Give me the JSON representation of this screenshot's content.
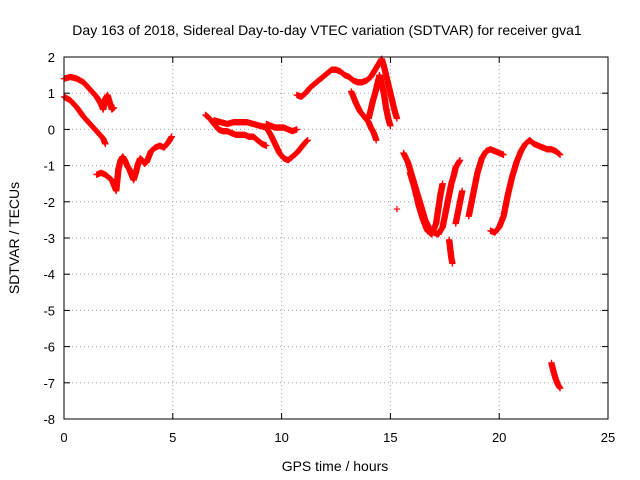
{
  "chart_data": {
    "type": "scatter",
    "title": "Day 163 of 2018, Sidereal Day-to-day VTEC variation (SDTVAR) for receiver gva1",
    "xlabel": "GPS time / hours",
    "ylabel": "SDTVAR / TECUs",
    "xlim": [
      0,
      25
    ],
    "ylim": [
      -8,
      2
    ],
    "xticks": [
      0,
      5,
      10,
      15,
      20,
      25
    ],
    "yticks": [
      -8,
      -7,
      -6,
      -5,
      -4,
      -3,
      -2,
      -1,
      0,
      1,
      2
    ],
    "grid": true,
    "legend": "none",
    "marker": "+",
    "color": "#ff0000",
    "segments": [
      [
        [
          0.0,
          1.4
        ],
        [
          0.3,
          1.45
        ],
        [
          0.6,
          1.4
        ],
        [
          0.9,
          1.3
        ],
        [
          1.2,
          1.1
        ],
        [
          1.5,
          0.9
        ],
        [
          1.7,
          0.7
        ],
        [
          1.8,
          0.55
        ],
        [
          1.9,
          0.85
        ],
        [
          2.0,
          0.95
        ],
        [
          2.1,
          0.75
        ],
        [
          2.2,
          0.55
        ],
        [
          2.3,
          0.6
        ]
      ],
      [
        [
          0.0,
          0.9
        ],
        [
          0.3,
          0.8
        ],
        [
          0.6,
          0.6
        ],
        [
          0.9,
          0.35
        ],
        [
          1.2,
          0.15
        ],
        [
          1.5,
          -0.05
        ],
        [
          1.8,
          -0.25
        ],
        [
          1.9,
          -0.4
        ]
      ],
      [
        [
          1.5,
          -1.25
        ],
        [
          1.7,
          -1.2
        ],
        [
          1.9,
          -1.25
        ],
        [
          2.1,
          -1.35
        ],
        [
          2.2,
          -1.4
        ],
        [
          2.3,
          -1.55
        ],
        [
          2.4,
          -1.7
        ],
        [
          2.45,
          -1.4
        ],
        [
          2.5,
          -1.1
        ],
        [
          2.6,
          -0.85
        ],
        [
          2.7,
          -0.75
        ],
        [
          2.8,
          -0.85
        ],
        [
          2.9,
          -1.0
        ],
        [
          3.0,
          -1.1
        ],
        [
          3.1,
          -1.25
        ],
        [
          3.2,
          -1.4
        ],
        [
          3.3,
          -1.2
        ],
        [
          3.4,
          -0.95
        ],
        [
          3.5,
          -0.8
        ],
        [
          3.6,
          -0.85
        ],
        [
          3.7,
          -0.95
        ],
        [
          3.8,
          -0.9
        ],
        [
          3.9,
          -0.75
        ],
        [
          4.0,
          -0.6
        ],
        [
          4.2,
          -0.5
        ],
        [
          4.4,
          -0.45
        ],
        [
          4.6,
          -0.5
        ],
        [
          4.8,
          -0.35
        ],
        [
          4.95,
          -0.2
        ]
      ],
      [
        [
          6.5,
          0.4
        ],
        [
          6.7,
          0.3
        ],
        [
          6.9,
          0.15
        ],
        [
          7.1,
          0.0
        ],
        [
          7.3,
          -0.05
        ],
        [
          7.5,
          -0.05
        ],
        [
          7.7,
          -0.1
        ],
        [
          7.9,
          -0.15
        ],
        [
          8.1,
          -0.15
        ],
        [
          8.3,
          -0.15
        ],
        [
          8.5,
          -0.2
        ],
        [
          8.7,
          -0.2
        ],
        [
          8.9,
          -0.3
        ],
        [
          9.1,
          -0.4
        ],
        [
          9.3,
          -0.45
        ]
      ],
      [
        [
          6.9,
          0.25
        ],
        [
          7.2,
          0.2
        ],
        [
          7.5,
          0.15
        ],
        [
          7.8,
          0.2
        ],
        [
          8.1,
          0.2
        ],
        [
          8.4,
          0.2
        ],
        [
          8.7,
          0.15
        ],
        [
          9.0,
          0.1
        ],
        [
          9.3,
          0.05
        ],
        [
          9.5,
          -0.15
        ],
        [
          9.7,
          -0.4
        ],
        [
          9.9,
          -0.65
        ],
        [
          10.1,
          -0.8
        ],
        [
          10.3,
          -0.85
        ],
        [
          10.5,
          -0.75
        ],
        [
          10.7,
          -0.65
        ],
        [
          10.9,
          -0.5
        ],
        [
          11.1,
          -0.35
        ],
        [
          11.2,
          -0.3
        ]
      ],
      [
        [
          9.3,
          0.15
        ],
        [
          9.5,
          0.1
        ],
        [
          9.7,
          0.05
        ],
        [
          9.9,
          0.05
        ],
        [
          10.1,
          0.05
        ],
        [
          10.3,
          0.0
        ],
        [
          10.5,
          -0.05
        ],
        [
          10.7,
          0.0
        ]
      ],
      [
        [
          10.7,
          0.95
        ],
        [
          10.9,
          0.9
        ],
        [
          11.1,
          1.0
        ],
        [
          11.3,
          1.15
        ],
        [
          11.5,
          1.25
        ],
        [
          11.7,
          1.35
        ],
        [
          11.9,
          1.45
        ],
        [
          12.1,
          1.55
        ],
        [
          12.3,
          1.65
        ],
        [
          12.5,
          1.65
        ],
        [
          12.7,
          1.6
        ],
        [
          12.9,
          1.5
        ],
        [
          13.1,
          1.45
        ],
        [
          13.3,
          1.35
        ],
        [
          13.5,
          1.3
        ],
        [
          13.7,
          1.3
        ],
        [
          13.9,
          1.35
        ],
        [
          14.1,
          1.45
        ],
        [
          14.3,
          1.65
        ],
        [
          14.5,
          1.85
        ],
        [
          14.6,
          1.95
        ],
        [
          14.7,
          1.75
        ],
        [
          14.8,
          1.5
        ],
        [
          14.9,
          1.25
        ],
        [
          15.0,
          1.0
        ],
        [
          15.1,
          0.75
        ],
        [
          15.2,
          0.5
        ],
        [
          15.3,
          0.3
        ]
      ],
      [
        [
          13.2,
          1.05
        ],
        [
          13.4,
          0.75
        ],
        [
          13.6,
          0.5
        ],
        [
          13.8,
          0.35
        ],
        [
          14.0,
          0.2
        ],
        [
          14.1,
          0.05
        ],
        [
          14.2,
          -0.05
        ],
        [
          14.3,
          -0.2
        ],
        [
          14.35,
          -0.3
        ]
      ],
      [
        [
          14.0,
          0.3
        ],
        [
          14.1,
          0.55
        ],
        [
          14.2,
          0.8
        ],
        [
          14.3,
          1.0
        ],
        [
          14.4,
          1.25
        ],
        [
          14.5,
          1.5
        ],
        [
          14.6,
          1.25
        ],
        [
          14.7,
          1.0
        ],
        [
          14.8,
          0.6
        ],
        [
          14.9,
          0.3
        ],
        [
          15.0,
          0.1
        ]
      ],
      [
        [
          15.3,
          -2.2
        ]
      ],
      [
        [
          15.6,
          -0.65
        ],
        [
          15.8,
          -0.9
        ],
        [
          16.0,
          -1.3
        ],
        [
          16.2,
          -1.7
        ],
        [
          16.4,
          -2.1
        ],
        [
          16.6,
          -2.5
        ],
        [
          16.8,
          -2.75
        ],
        [
          17.0,
          -2.85
        ],
        [
          17.2,
          -2.9
        ],
        [
          17.4,
          -2.7
        ],
        [
          17.5,
          -2.4
        ],
        [
          17.6,
          -2.1
        ],
        [
          17.7,
          -1.8
        ],
        [
          17.8,
          -1.5
        ],
        [
          17.9,
          -1.3
        ],
        [
          18.0,
          -1.05
        ],
        [
          18.2,
          -0.85
        ]
      ],
      [
        [
          15.9,
          -1.2
        ],
        [
          16.1,
          -1.6
        ],
        [
          16.3,
          -2.1
        ],
        [
          16.5,
          -2.5
        ],
        [
          16.7,
          -2.8
        ],
        [
          16.9,
          -2.9
        ],
        [
          17.1,
          -2.6
        ],
        [
          17.2,
          -2.2
        ],
        [
          17.3,
          -1.8
        ],
        [
          17.4,
          -1.5
        ]
      ],
      [
        [
          17.7,
          -3.05
        ],
        [
          17.75,
          -3.3
        ],
        [
          17.8,
          -3.55
        ],
        [
          17.85,
          -3.7
        ]
      ],
      [
        [
          18.0,
          -2.6
        ],
        [
          18.1,
          -2.3
        ],
        [
          18.2,
          -2.0
        ],
        [
          18.3,
          -1.7
        ]
      ],
      [
        [
          18.6,
          -2.4
        ],
        [
          18.8,
          -1.8
        ],
        [
          19.0,
          -1.2
        ],
        [
          19.2,
          -0.8
        ],
        [
          19.4,
          -0.6
        ],
        [
          19.6,
          -0.55
        ],
        [
          19.8,
          -0.6
        ],
        [
          20.0,
          -0.65
        ],
        [
          20.2,
          -0.7
        ]
      ],
      [
        [
          19.6,
          -2.8
        ],
        [
          19.8,
          -2.85
        ],
        [
          20.0,
          -2.7
        ],
        [
          20.2,
          -2.4
        ],
        [
          20.4,
          -1.8
        ],
        [
          20.6,
          -1.3
        ],
        [
          20.8,
          -0.9
        ],
        [
          21.0,
          -0.6
        ],
        [
          21.2,
          -0.4
        ],
        [
          21.4,
          -0.3
        ],
        [
          21.6,
          -0.4
        ],
        [
          21.8,
          -0.45
        ],
        [
          22.0,
          -0.5
        ],
        [
          22.2,
          -0.55
        ],
        [
          22.4,
          -0.55
        ],
        [
          22.6,
          -0.6
        ],
        [
          22.8,
          -0.7
        ]
      ],
      [
        [
          22.4,
          -6.45
        ],
        [
          22.5,
          -6.7
        ],
        [
          22.6,
          -6.9
        ],
        [
          22.7,
          -7.05
        ],
        [
          22.8,
          -7.15
        ]
      ]
    ]
  }
}
